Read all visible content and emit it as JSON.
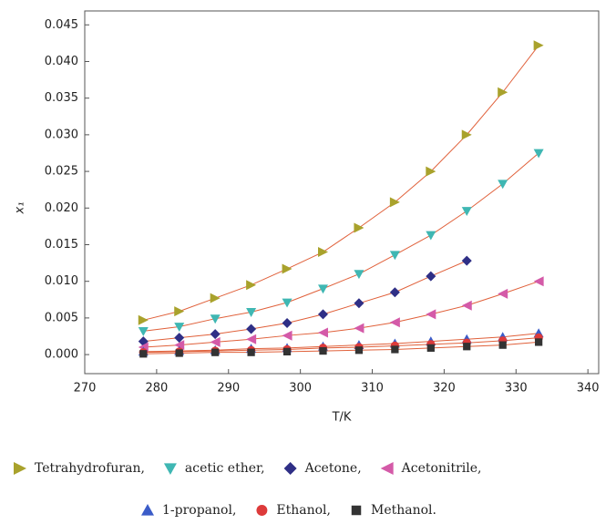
{
  "chart_data": {
    "type": "scatter",
    "x_label": "T/K",
    "y_label": "x₁",
    "xlim": [
      270,
      341.5
    ],
    "ylim": [
      -0.0026,
      0.0469
    ],
    "xticks": [
      270,
      280,
      290,
      300,
      310,
      320,
      330,
      340
    ],
    "yticks": [
      {
        "value": 0,
        "label": "0.000"
      },
      {
        "value": 0.005,
        "label": "0.005"
      },
      {
        "value": 0.01,
        "label": "0.010"
      },
      {
        "value": 0.015,
        "label": "0.015"
      },
      {
        "value": 0.02,
        "label": "0.020"
      },
      {
        "value": 0.025,
        "label": "0.025"
      },
      {
        "value": 0.03,
        "label": "0.030"
      },
      {
        "value": 0.035,
        "label": "0.035"
      },
      {
        "value": 0.04,
        "label": "0.040"
      },
      {
        "value": 0.045,
        "label": "0.045"
      }
    ],
    "line_color": "#e0603a",
    "x": [
      278.15,
      283.15,
      288.15,
      293.15,
      298.15,
      303.15,
      308.15,
      313.15,
      318.15,
      323.15,
      328.15,
      333.15
    ],
    "series": [
      {
        "name": "Tetrahydrofuran,",
        "color": "#a9a22c",
        "marker": "triangle-right",
        "values": [
          0.0047,
          0.0059,
          0.0077,
          0.0095,
          0.0117,
          0.014,
          0.0173,
          0.0208,
          0.025,
          0.03,
          0.0358,
          0.0422
        ]
      },
      {
        "name": "acetic ether,",
        "color": "#3fb7b3",
        "marker": "triangle-down",
        "values": [
          0.0032,
          0.0038,
          0.0049,
          0.0058,
          0.0071,
          0.009,
          0.011,
          0.0136,
          0.0163,
          0.0196,
          0.0233,
          0.0275
        ]
      },
      {
        "name": "Acetone,",
        "color": "#2f2f86",
        "marker": "diamond",
        "values": [
          0.0018,
          0.0023,
          0.0028,
          0.0035,
          0.0043,
          0.0055,
          0.007,
          0.0085,
          0.0107,
          0.0128,
          null,
          null
        ]
      },
      {
        "name": "Acetonitrile,",
        "color": "#d45aa8",
        "marker": "triangle-left",
        "values": [
          0.001,
          0.0013,
          0.0017,
          0.0021,
          0.0026,
          0.003,
          0.0036,
          0.0044,
          0.0055,
          0.0067,
          0.0083,
          0.01
        ]
      },
      {
        "name": "1-propanol,",
        "color": "#3b5cc8",
        "marker": "triangle-up",
        "values": [
          0.0004,
          0.0005,
          0.0006,
          0.0008,
          0.0009,
          0.0011,
          0.0013,
          0.0015,
          0.0018,
          0.0021,
          0.0024,
          0.0029
        ]
      },
      {
        "name": "Ethanol,",
        "color": "#dd3a3a",
        "marker": "circle",
        "values": [
          0.0003,
          0.0004,
          0.0005,
          0.0006,
          0.0007,
          0.0009,
          0.001,
          0.0012,
          0.0014,
          0.0016,
          0.0019,
          0.0023
        ]
      },
      {
        "name": "Methanol.",
        "color": "#333333",
        "marker": "square",
        "values": [
          0.0001,
          0.0002,
          0.0003,
          0.0003,
          0.0004,
          0.0005,
          0.0006,
          0.0007,
          0.0009,
          0.0011,
          0.0013,
          0.0017
        ]
      }
    ]
  }
}
